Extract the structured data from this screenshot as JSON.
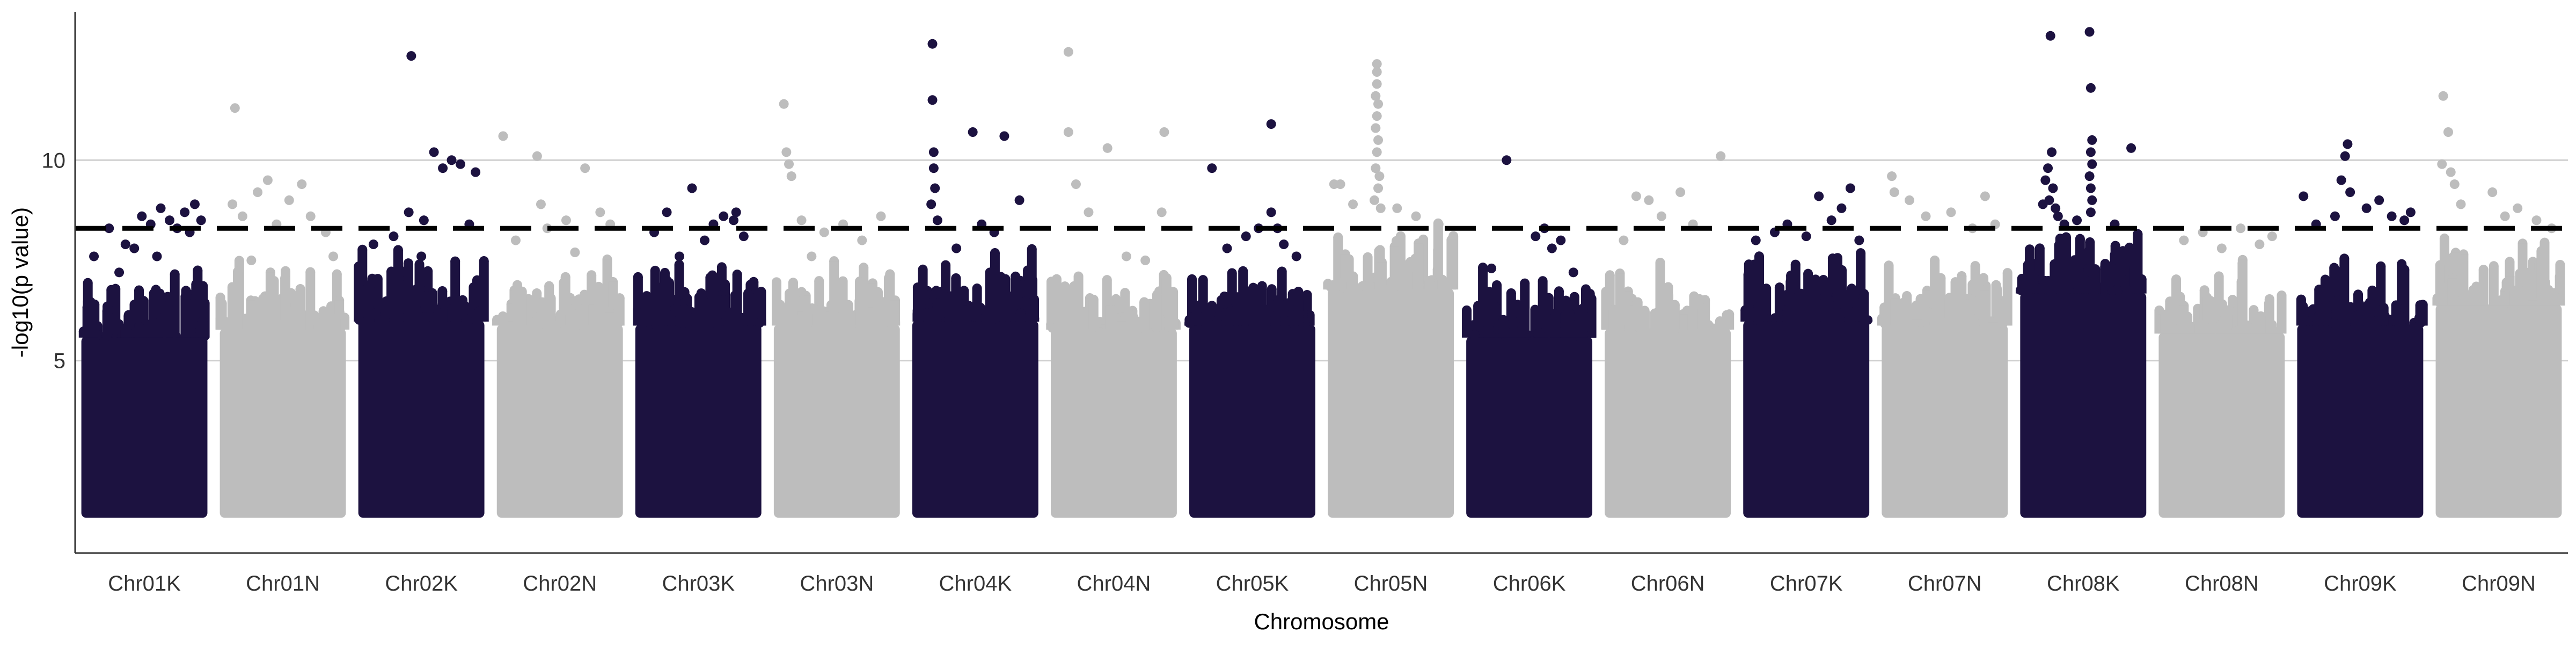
{
  "chart_data": {
    "type": "scatter",
    "subtype": "manhattan",
    "xlabel": "Chromosome",
    "ylabel": "-log10(p value)",
    "ylim": [
      0.2,
      13.7
    ],
    "yticks": [
      5,
      10
    ],
    "grid": "horizontal major lines",
    "legend": "none",
    "threshold": {
      "value": 8.3,
      "style": "dashed",
      "color": "#000000"
    },
    "colors": {
      "K": "#1c1240",
      "N": "#bdbdbd"
    },
    "point_floor": 1.2,
    "chromosomes": [
      {
        "name": "Chr01K",
        "color": "#1c1240",
        "body_top": 5.6,
        "points": [
          [
            0.1,
            7.6
          ],
          [
            0.22,
            8.3
          ],
          [
            0.35,
            7.9
          ],
          [
            0.48,
            8.6
          ],
          [
            0.55,
            8.4
          ],
          [
            0.63,
            8.8
          ],
          [
            0.7,
            8.5
          ],
          [
            0.76,
            8.3
          ],
          [
            0.82,
            8.7
          ],
          [
            0.9,
            8.9
          ],
          [
            0.95,
            8.5
          ],
          [
            0.86,
            8.2
          ],
          [
            0.42,
            7.8
          ],
          [
            0.3,
            7.2
          ],
          [
            0.6,
            7.6
          ]
        ]
      },
      {
        "name": "Chr01N",
        "color": "#bdbdbd",
        "body_top": 5.8,
        "points": [
          [
            0.12,
            11.3
          ],
          [
            0.1,
            8.9
          ],
          [
            0.18,
            8.6
          ],
          [
            0.3,
            9.2
          ],
          [
            0.38,
            9.5
          ],
          [
            0.45,
            8.4
          ],
          [
            0.55,
            9.0
          ],
          [
            0.65,
            9.4
          ],
          [
            0.72,
            8.6
          ],
          [
            0.84,
            8.2
          ],
          [
            0.9,
            7.6
          ],
          [
            0.25,
            7.5
          ]
        ]
      },
      {
        "name": "Chr02K",
        "color": "#1c1240",
        "body_top": 6.0,
        "points": [
          [
            0.42,
            12.6
          ],
          [
            0.12,
            7.9
          ],
          [
            0.28,
            8.1
          ],
          [
            0.4,
            8.7
          ],
          [
            0.52,
            8.5
          ],
          [
            0.6,
            10.2
          ],
          [
            0.67,
            9.8
          ],
          [
            0.74,
            10.0
          ],
          [
            0.81,
            9.9
          ],
          [
            0.88,
            8.4
          ],
          [
            0.93,
            9.7
          ],
          [
            0.5,
            7.6
          ]
        ]
      },
      {
        "name": "Chr02N",
        "color": "#bdbdbd",
        "body_top": 5.9,
        "points": [
          [
            0.05,
            10.6
          ],
          [
            0.15,
            8.0
          ],
          [
            0.32,
            10.1
          ],
          [
            0.35,
            8.9
          ],
          [
            0.4,
            8.3
          ],
          [
            0.55,
            8.5
          ],
          [
            0.7,
            9.8
          ],
          [
            0.82,
            8.7
          ],
          [
            0.9,
            8.4
          ],
          [
            0.62,
            7.7
          ]
        ]
      },
      {
        "name": "Chr03K",
        "color": "#1c1240",
        "body_top": 5.9,
        "points": [
          [
            0.15,
            8.2
          ],
          [
            0.25,
            8.7
          ],
          [
            0.45,
            9.3
          ],
          [
            0.55,
            8.0
          ],
          [
            0.62,
            8.4
          ],
          [
            0.7,
            8.6
          ],
          [
            0.78,
            8.5
          ],
          [
            0.8,
            8.7
          ],
          [
            0.86,
            8.1
          ],
          [
            0.35,
            7.6
          ]
        ]
      },
      {
        "name": "Chr03N",
        "color": "#bdbdbd",
        "body_top": 5.9,
        "points": [
          [
            0.08,
            11.4
          ],
          [
            0.1,
            10.2
          ],
          [
            0.12,
            9.9
          ],
          [
            0.14,
            9.6
          ],
          [
            0.22,
            8.5
          ],
          [
            0.4,
            8.2
          ],
          [
            0.55,
            8.4
          ],
          [
            0.7,
            8.0
          ],
          [
            0.85,
            8.6
          ],
          [
            0.3,
            7.6
          ]
        ]
      },
      {
        "name": "Chr04K",
        "color": "#1c1240",
        "body_top": 6.0,
        "points": [
          [
            0.16,
            12.9
          ],
          [
            0.16,
            11.5
          ],
          [
            0.17,
            10.2
          ],
          [
            0.17,
            9.8
          ],
          [
            0.18,
            9.3
          ],
          [
            0.15,
            8.9
          ],
          [
            0.2,
            8.5
          ],
          [
            0.48,
            10.7
          ],
          [
            0.73,
            10.6
          ],
          [
            0.85,
            9.0
          ],
          [
            0.55,
            8.4
          ],
          [
            0.65,
            8.2
          ],
          [
            0.35,
            7.8
          ]
        ]
      },
      {
        "name": "Chr04N",
        "color": "#bdbdbd",
        "body_top": 5.8,
        "points": [
          [
            0.14,
            12.7
          ],
          [
            0.14,
            10.7
          ],
          [
            0.2,
            9.4
          ],
          [
            0.3,
            8.7
          ],
          [
            0.45,
            10.3
          ],
          [
            0.9,
            10.7
          ],
          [
            0.88,
            8.7
          ],
          [
            0.6,
            7.6
          ],
          [
            0.75,
            7.5
          ]
        ]
      },
      {
        "name": "Chr05K",
        "color": "#1c1240",
        "body_top": 5.9,
        "points": [
          [
            0.18,
            9.8
          ],
          [
            0.3,
            7.8
          ],
          [
            0.45,
            8.1
          ],
          [
            0.55,
            8.3
          ],
          [
            0.65,
            8.7
          ],
          [
            0.7,
            8.3
          ],
          [
            0.75,
            7.9
          ],
          [
            0.65,
            10.9
          ],
          [
            0.85,
            7.6
          ]
        ]
      },
      {
        "name": "Chr05N",
        "color": "#bdbdbd",
        "body_top": 6.8,
        "points": [
          [
            0.39,
            12.4
          ],
          [
            0.39,
            12.2
          ],
          [
            0.39,
            11.9
          ],
          [
            0.38,
            11.6
          ],
          [
            0.4,
            11.4
          ],
          [
            0.39,
            11.1
          ],
          [
            0.38,
            10.8
          ],
          [
            0.4,
            10.5
          ],
          [
            0.39,
            10.2
          ],
          [
            0.38,
            9.8
          ],
          [
            0.41,
            9.6
          ],
          [
            0.4,
            9.3
          ],
          [
            0.37,
            9.0
          ],
          [
            0.42,
            8.8
          ],
          [
            0.05,
            9.4
          ],
          [
            0.1,
            9.4
          ],
          [
            0.2,
            8.9
          ],
          [
            0.55,
            8.8
          ],
          [
            0.7,
            8.6
          ],
          [
            0.88,
            8.4
          ]
        ]
      },
      {
        "name": "Chr06K",
        "color": "#1c1240",
        "body_top": 5.6,
        "points": [
          [
            0.32,
            10.0
          ],
          [
            0.55,
            8.1
          ],
          [
            0.62,
            8.3
          ],
          [
            0.68,
            7.8
          ],
          [
            0.75,
            8.0
          ],
          [
            0.2,
            7.3
          ],
          [
            0.85,
            7.2
          ]
        ]
      },
      {
        "name": "Chr06N",
        "color": "#bdbdbd",
        "body_top": 5.8,
        "points": [
          [
            0.92,
            10.1
          ],
          [
            0.25,
            9.1
          ],
          [
            0.35,
            9.0
          ],
          [
            0.45,
            8.6
          ],
          [
            0.6,
            9.2
          ],
          [
            0.7,
            8.4
          ],
          [
            0.15,
            8.0
          ]
        ]
      },
      {
        "name": "Chr07K",
        "color": "#1c1240",
        "body_top": 6.0,
        "points": [
          [
            0.1,
            8.0
          ],
          [
            0.25,
            8.2
          ],
          [
            0.35,
            8.4
          ],
          [
            0.5,
            8.1
          ],
          [
            0.6,
            9.1
          ],
          [
            0.7,
            8.5
          ],
          [
            0.78,
            8.8
          ],
          [
            0.85,
            9.3
          ],
          [
            0.92,
            8.0
          ]
        ]
      },
      {
        "name": "Chr07N",
        "color": "#bdbdbd",
        "body_top": 5.9,
        "points": [
          [
            0.08,
            9.6
          ],
          [
            0.1,
            9.2
          ],
          [
            0.22,
            9.0
          ],
          [
            0.35,
            8.6
          ],
          [
            0.55,
            8.7
          ],
          [
            0.72,
            8.3
          ],
          [
            0.82,
            9.1
          ],
          [
            0.9,
            8.4
          ]
        ]
      },
      {
        "name": "Chr08K",
        "color": "#1c1240",
        "body_top": 6.7,
        "points": [
          [
            0.24,
            13.1
          ],
          [
            0.55,
            13.2
          ],
          [
            0.56,
            11.8
          ],
          [
            0.57,
            10.5
          ],
          [
            0.56,
            10.2
          ],
          [
            0.57,
            9.9
          ],
          [
            0.55,
            9.6
          ],
          [
            0.56,
            9.3
          ],
          [
            0.57,
            9.0
          ],
          [
            0.56,
            8.7
          ],
          [
            0.25,
            10.2
          ],
          [
            0.22,
            9.8
          ],
          [
            0.2,
            9.5
          ],
          [
            0.26,
            9.3
          ],
          [
            0.23,
            9.0
          ],
          [
            0.28,
            8.8
          ],
          [
            0.3,
            8.6
          ],
          [
            0.35,
            8.4
          ],
          [
            0.45,
            8.5
          ],
          [
            0.75,
            8.4
          ],
          [
            0.88,
            10.3
          ],
          [
            0.18,
            8.9
          ]
        ]
      },
      {
        "name": "Chr08N",
        "color": "#bdbdbd",
        "body_top": 5.7,
        "points": [
          [
            0.2,
            8.0
          ],
          [
            0.35,
            8.2
          ],
          [
            0.5,
            7.8
          ],
          [
            0.65,
            8.3
          ],
          [
            0.8,
            7.9
          ],
          [
            0.9,
            8.1
          ]
        ]
      },
      {
        "name": "Chr09K",
        "color": "#1c1240",
        "body_top": 5.9,
        "points": [
          [
            0.05,
            9.1
          ],
          [
            0.15,
            8.4
          ],
          [
            0.3,
            8.6
          ],
          [
            0.38,
            10.1
          ],
          [
            0.4,
            10.4
          ],
          [
            0.35,
            9.5
          ],
          [
            0.42,
            9.2
          ],
          [
            0.55,
            8.8
          ],
          [
            0.65,
            9.0
          ],
          [
            0.75,
            8.6
          ],
          [
            0.85,
            8.5
          ],
          [
            0.9,
            8.7
          ]
        ]
      },
      {
        "name": "Chr09N",
        "color": "#bdbdbd",
        "body_top": 6.4,
        "points": [
          [
            0.06,
            11.6
          ],
          [
            0.1,
            10.7
          ],
          [
            0.05,
            9.9
          ],
          [
            0.12,
            9.7
          ],
          [
            0.15,
            9.4
          ],
          [
            0.2,
            8.9
          ],
          [
            0.45,
            9.2
          ],
          [
            0.55,
            8.6
          ],
          [
            0.65,
            8.8
          ],
          [
            0.8,
            8.5
          ],
          [
            0.92,
            8.3
          ]
        ]
      }
    ]
  }
}
